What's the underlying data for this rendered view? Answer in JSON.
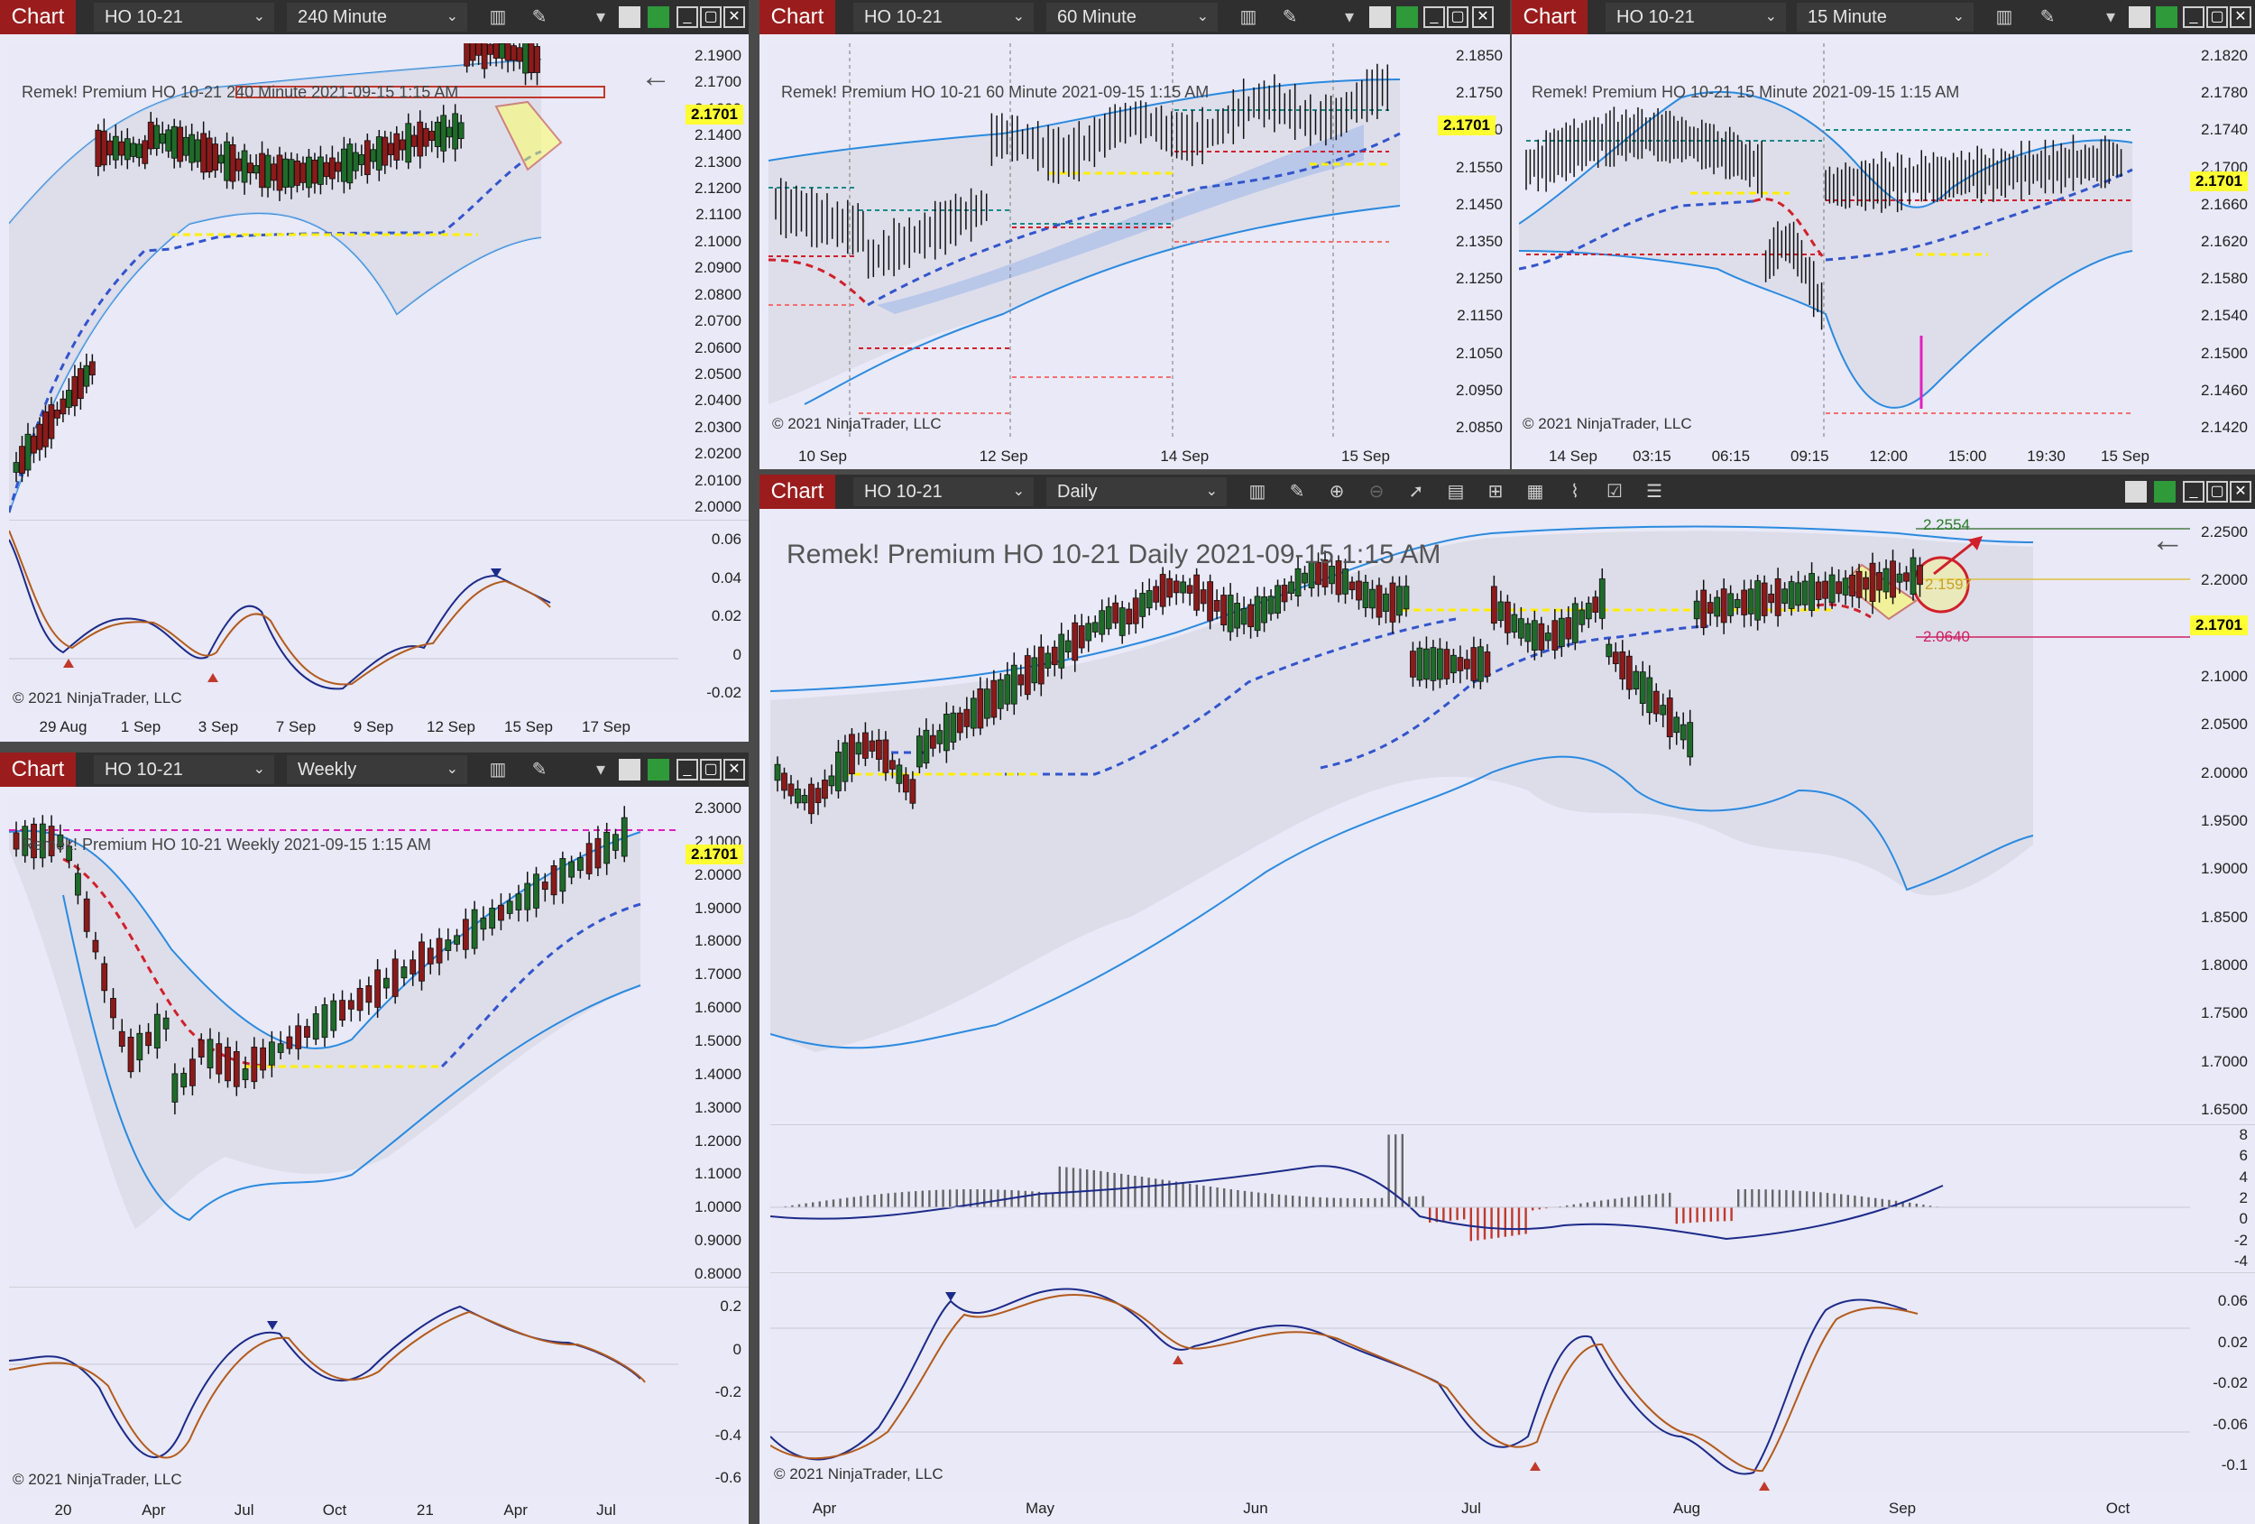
{
  "windows": [
    {
      "id": "w1",
      "chart_label": "Chart",
      "instrument": "HO 10-21",
      "interval": "240 Minute",
      "title": "Remek!  Premium  HO 10-21  240 Minute  2021-09-15 1:15 AM",
      "last_price": "2.1701",
      "price_ticks": [
        "2.1900",
        "2.1700",
        "2.1600",
        "2.1400",
        "2.1300",
        "2.1200",
        "2.1100",
        "2.1000",
        "2.0900",
        "2.0800",
        "2.0700",
        "2.0600",
        "2.0500",
        "2.0400",
        "2.0300",
        "2.0200",
        "2.0100",
        "2.0000"
      ],
      "osc_ticks": [
        "0.06",
        "0.04",
        "0.02",
        "0",
        "-0.02"
      ],
      "x_ticks": [
        "29 Aug",
        "1 Sep",
        "3 Sep",
        "7 Sep",
        "9 Sep",
        "12 Sep",
        "15 Sep",
        "17 Sep"
      ],
      "copyright": "© 2021 NinjaTrader, LLC"
    },
    {
      "id": "w2",
      "chart_label": "Chart",
      "instrument": "HO 10-21",
      "interval": "60 Minute",
      "title": "Remek!  Premium  HO 10-21  60 Minute  2021-09-15 1:15 AM",
      "last_price": "2.1701",
      "price_ticks": [
        "2.1850",
        "2.1750",
        "2.1650",
        "2.1550",
        "2.1450",
        "2.1350",
        "2.1250",
        "2.1150",
        "2.1050",
        "2.0950",
        "2.0850"
      ],
      "x_ticks": [
        "10 Sep",
        "12 Sep",
        "14 Sep",
        "15 Sep"
      ],
      "copyright": "© 2021 NinjaTrader, LLC"
    },
    {
      "id": "w3",
      "chart_label": "Chart",
      "instrument": "HO 10-21",
      "interval": "15 Minute",
      "title": "Remek!  Premium  HO 10-21  15 Minute  2021-09-15 1:15 AM",
      "last_price": "2.1701",
      "price_ticks": [
        "2.1820",
        "2.1780",
        "2.1740",
        "2.1700",
        "2.1660",
        "2.1620",
        "2.1580",
        "2.1540",
        "2.1500",
        "2.1460",
        "2.1420"
      ],
      "x_ticks": [
        "14 Sep",
        "03:15",
        "06:15",
        "09:15",
        "12:00",
        "15:00",
        "19:30",
        "15 Sep"
      ],
      "copyright": "© 2021 NinjaTrader, LLC"
    },
    {
      "id": "w4",
      "chart_label": "Chart",
      "instrument": "HO 10-21",
      "interval": "Weekly",
      "title": "Remek!  Premium  HO 10-21  Weekly  2021-09-15 1:15 AM",
      "last_price": "2.1701",
      "price_ticks": [
        "2.3000",
        "2.1000",
        "2.0000",
        "1.9000",
        "1.8000",
        "1.7000",
        "1.6000",
        "1.5000",
        "1.4000",
        "1.3000",
        "1.2000",
        "1.1000",
        "1.0000",
        "0.9000",
        "0.8000"
      ],
      "osc_ticks": [
        "0.2",
        "0",
        "-0.2",
        "-0.4",
        "-0.6"
      ],
      "x_ticks": [
        "20",
        "Apr",
        "Jul",
        "Oct",
        "21",
        "Apr",
        "Jul"
      ],
      "copyright": "© 2021 NinjaTrader, LLC"
    },
    {
      "id": "w5",
      "chart_label": "Chart",
      "instrument": "HO 10-21",
      "interval": "Daily",
      "title": "Remek!  Premium  HO 10-21  Daily  2021-09-15 1:15 AM",
      "last_price": "2.1701",
      "target_high": "2.2554",
      "pattern_level": "2.1597",
      "target_low": "2.0640",
      "price_ticks": [
        "2.2500",
        "2.2000",
        "2.1500",
        "2.1000",
        "2.0500",
        "2.0000",
        "1.9500",
        "1.9000",
        "1.8500",
        "1.8000",
        "1.7500",
        "1.7000",
        "1.6500"
      ],
      "macd_ticks": [
        "8",
        "6",
        "4",
        "2",
        "0",
        "-2",
        "-4"
      ],
      "osc_ticks": [
        "0.06",
        "0.02",
        "-0.02",
        "-0.06",
        "-0.1"
      ],
      "x_ticks": [
        "Apr",
        "May",
        "Jun",
        "Jul",
        "Aug",
        "Sep",
        "Oct"
      ],
      "copyright": "© 2021 NinjaTrader, LLC"
    }
  ],
  "colors": {
    "chart_label_bg": "#9b1c1c",
    "toolbar_bg": "#2f2f2f",
    "plot_bg": "#e9e9f7",
    "band": "#2a8ae0",
    "trend_up": "#3355cc",
    "trend_down": "#d0202a",
    "support": "#ffee00"
  },
  "icons": [
    "bar-chart-icon",
    "pencil-icon",
    "zoom-in-icon",
    "zoom-out-icon",
    "pointer-icon",
    "properties-icon",
    "data-box-icon",
    "indicators-icon",
    "strategy-icon",
    "alert-icon",
    "list-icon",
    "back-arrow-icon"
  ]
}
